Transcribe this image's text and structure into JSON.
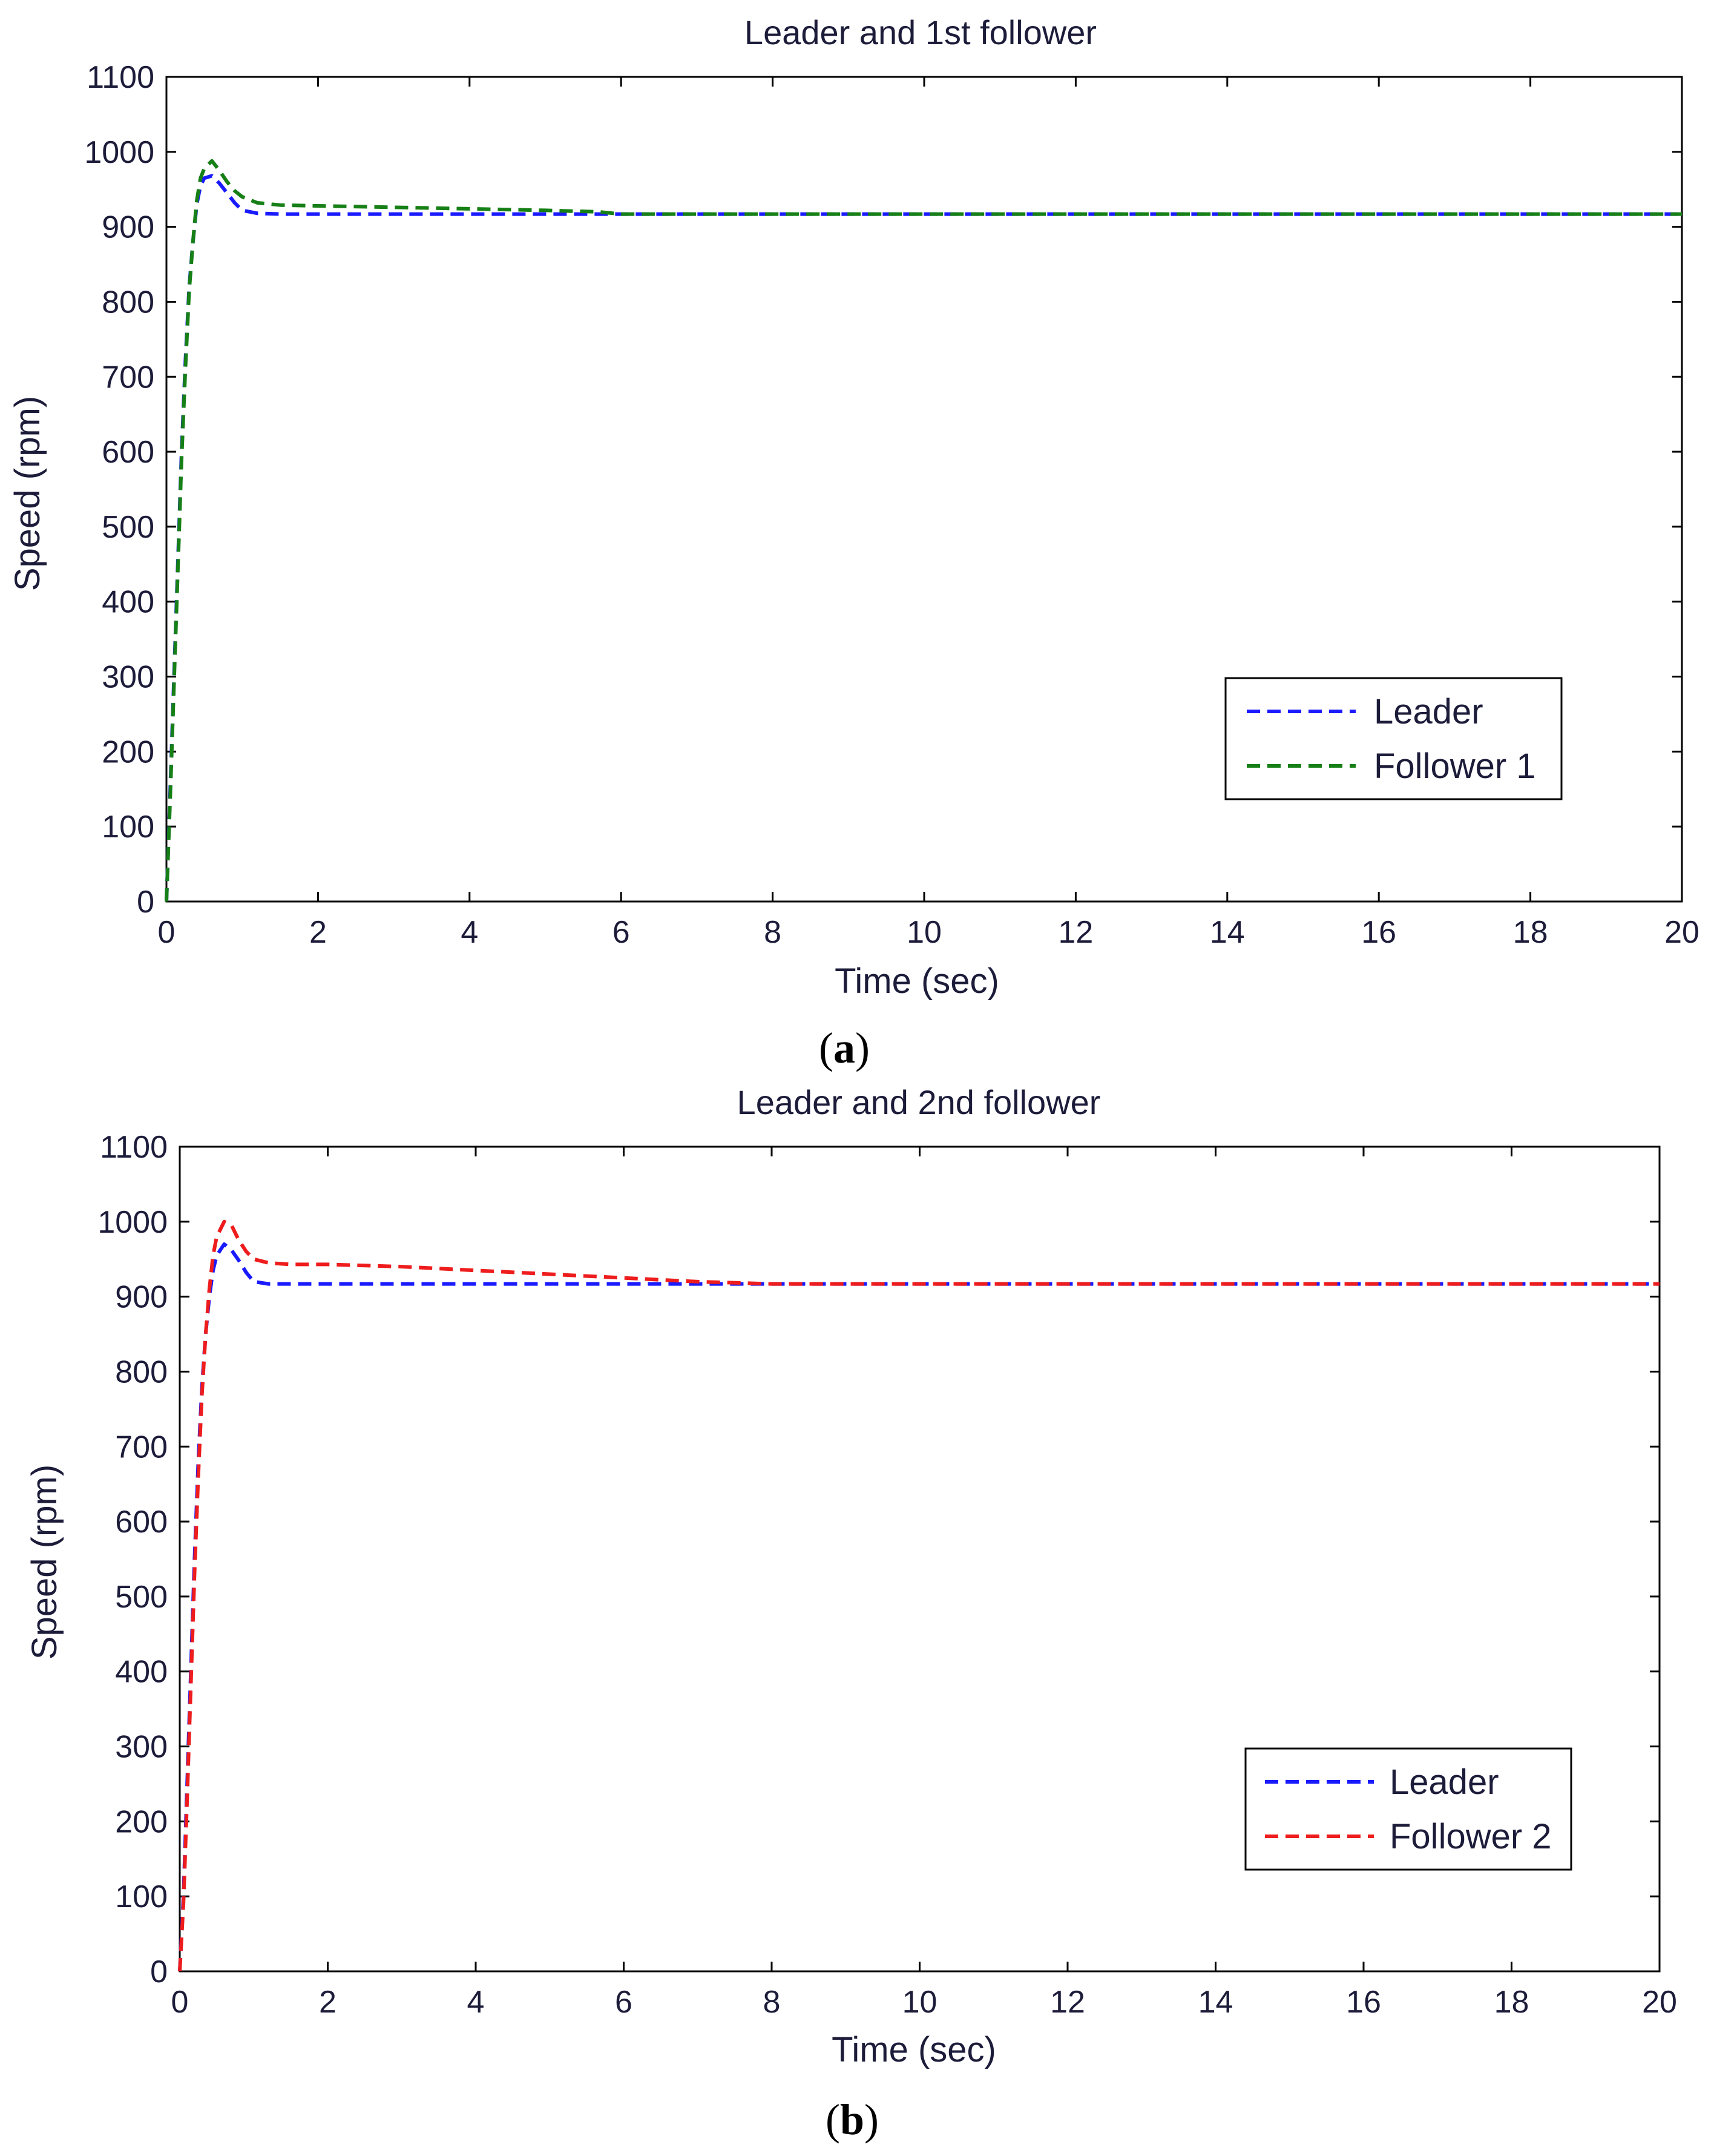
{
  "chart_data": [
    {
      "type": "line",
      "title": "Leader and 1st follower",
      "xlabel": "Time (sec)",
      "ylabel": "Speed (rpm)",
      "caption_letter": "a",
      "xlim": [
        0,
        20
      ],
      "ylim": [
        0,
        1100
      ],
      "xticks": [
        "0",
        "2",
        "4",
        "6",
        "8",
        "10",
        "12",
        "14",
        "16",
        "18",
        "20"
      ],
      "yticks": [
        "0",
        "100",
        "200",
        "300",
        "400",
        "500",
        "600",
        "700",
        "800",
        "900",
        "1000",
        "1100"
      ],
      "legend_position": "lower-right",
      "series": [
        {
          "name": "Leader",
          "color": "#1a1aff",
          "x": [
            0,
            0.05,
            0.1,
            0.15,
            0.2,
            0.25,
            0.3,
            0.35,
            0.4,
            0.45,
            0.5,
            0.6,
            0.7,
            0.8,
            0.9,
            1.0,
            1.2,
            1.5,
            2,
            3,
            4,
            5,
            6,
            8,
            10,
            12,
            14,
            16,
            18,
            20
          ],
          "y": [
            0,
            150,
            300,
            450,
            600,
            720,
            820,
            880,
            930,
            955,
            965,
            968,
            958,
            945,
            932,
            922,
            918,
            917,
            917,
            917,
            917,
            917,
            917,
            917,
            917,
            917,
            917,
            917,
            917,
            917
          ]
        },
        {
          "name": "Follower 1",
          "color": "#168016",
          "x": [
            0,
            0.05,
            0.1,
            0.15,
            0.2,
            0.25,
            0.3,
            0.35,
            0.4,
            0.45,
            0.5,
            0.6,
            0.7,
            0.8,
            0.9,
            1.0,
            1.2,
            1.5,
            2,
            3,
            4,
            5,
            5.7,
            6,
            8,
            10,
            12,
            14,
            16,
            18,
            20
          ],
          "y": [
            0,
            140,
            290,
            440,
            590,
            710,
            815,
            880,
            935,
            965,
            978,
            988,
            975,
            960,
            948,
            940,
            932,
            929,
            928,
            926,
            924,
            922,
            920,
            917,
            917,
            917,
            917,
            917,
            917,
            917,
            917
          ]
        }
      ]
    },
    {
      "type": "line",
      "title": "Leader and 2nd follower",
      "xlabel": "Time (sec)",
      "ylabel": "Speed (rpm)",
      "caption_letter": "b",
      "xlim": [
        0,
        20
      ],
      "ylim": [
        0,
        1100
      ],
      "xticks": [
        "0",
        "2",
        "4",
        "6",
        "8",
        "10",
        "12",
        "14",
        "16",
        "18",
        "20"
      ],
      "yticks": [
        "0",
        "100",
        "200",
        "300",
        "400",
        "500",
        "600",
        "700",
        "800",
        "900",
        "1000",
        "1100"
      ],
      "legend_position": "lower-right",
      "series": [
        {
          "name": "Leader",
          "color": "#1a1aff",
          "x": [
            0,
            0.05,
            0.1,
            0.15,
            0.2,
            0.25,
            0.3,
            0.35,
            0.4,
            0.45,
            0.5,
            0.6,
            0.7,
            0.8,
            0.9,
            1.0,
            1.2,
            1.5,
            2,
            3,
            4,
            5,
            6,
            7,
            7.3,
            8,
            10,
            12,
            14,
            16,
            18,
            20
          ],
          "y": [
            0,
            100,
            250,
            400,
            550,
            680,
            780,
            850,
            900,
            935,
            955,
            970,
            962,
            948,
            932,
            920,
            917,
            917,
            917,
            917,
            917,
            917,
            917,
            917,
            917,
            917,
            917,
            917,
            917,
            917,
            917,
            917
          ]
        },
        {
          "name": "Follower 2",
          "color": "#ee1c1c",
          "x": [
            0,
            0.05,
            0.1,
            0.15,
            0.2,
            0.25,
            0.3,
            0.35,
            0.4,
            0.45,
            0.5,
            0.6,
            0.7,
            0.8,
            0.9,
            1.0,
            1.2,
            1.5,
            2,
            3,
            4,
            5,
            6,
            7,
            8,
            10,
            12,
            14,
            16,
            18,
            20
          ],
          "y": [
            0,
            90,
            230,
            380,
            530,
            660,
            770,
            850,
            910,
            955,
            980,
            1000,
            995,
            975,
            960,
            950,
            945,
            943,
            943,
            940,
            935,
            930,
            925,
            920,
            917,
            917,
            917,
            917,
            917,
            917,
            917
          ]
        }
      ]
    }
  ]
}
